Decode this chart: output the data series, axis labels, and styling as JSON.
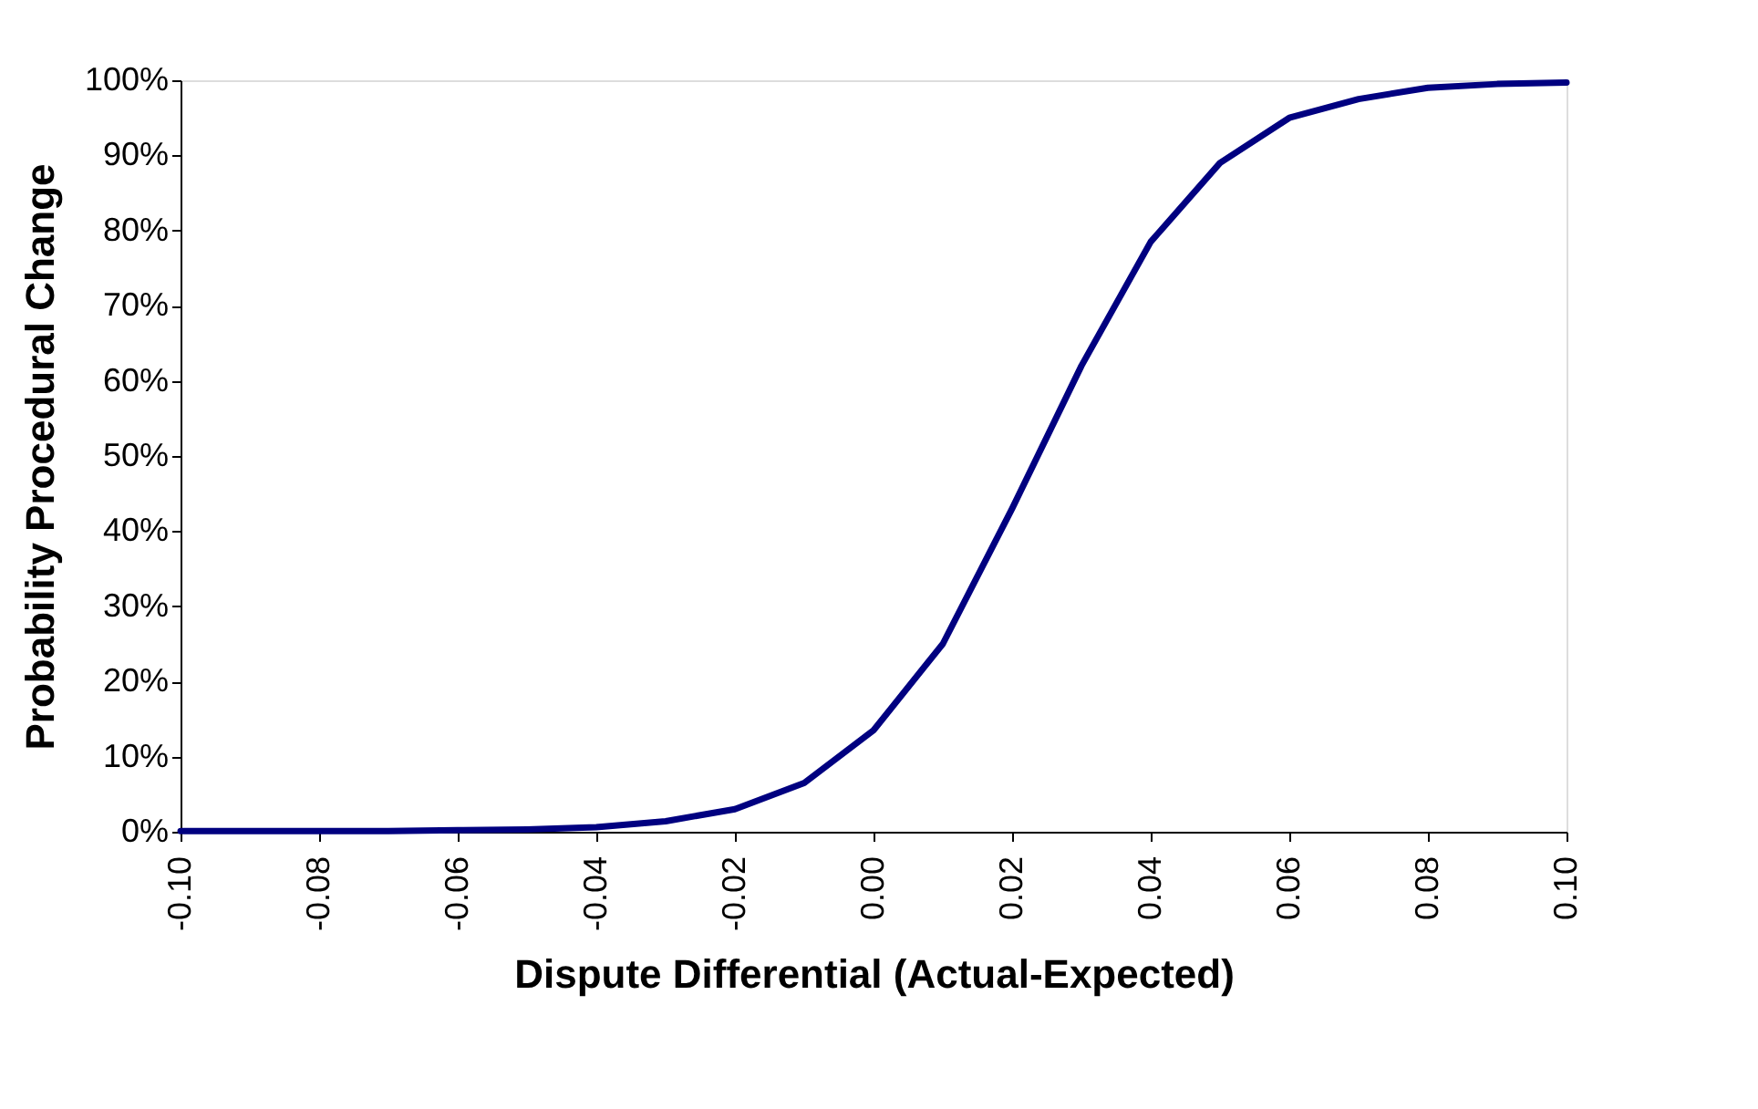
{
  "chart_data": {
    "type": "line",
    "xlabel": "Dispute Differential (Actual-Expected)",
    "ylabel": "Probability Procedural Change",
    "x": [
      -0.1,
      -0.09,
      -0.08,
      -0.07,
      -0.06,
      -0.05,
      -0.04,
      -0.03,
      -0.02,
      -0.01,
      0.0,
      0.01,
      0.02,
      0.03,
      0.04,
      0.05,
      0.06,
      0.07,
      0.08,
      0.09,
      0.1
    ],
    "series": [
      {
        "color": "#000080",
        "values": [
          0.1,
          0.1,
          0.1,
          0.1,
          0.2,
          0.3,
          0.6,
          1.4,
          3,
          6.5,
          13.5,
          25,
          43,
          62,
          78.5,
          89,
          95,
          97.5,
          99,
          99.5,
          99.7
        ]
      }
    ],
    "xlim": [
      -0.1,
      0.1
    ],
    "xticks": [
      {
        "value": -0.1,
        "label": "-0.10"
      },
      {
        "value": -0.08,
        "label": "-0.08"
      },
      {
        "value": -0.06,
        "label": "-0.06"
      },
      {
        "value": -0.04,
        "label": "-0.04"
      },
      {
        "value": -0.02,
        "label": "-0.02"
      },
      {
        "value": 0.0,
        "label": "0.00"
      },
      {
        "value": 0.02,
        "label": "0.02"
      },
      {
        "value": 0.04,
        "label": "0.04"
      },
      {
        "value": 0.06,
        "label": "0.06"
      },
      {
        "value": 0.08,
        "label": "0.08"
      },
      {
        "value": 0.1,
        "label": "0.10"
      }
    ],
    "ylim": [
      0,
      100
    ],
    "yticks": [
      {
        "value": 0,
        "label": "0%"
      },
      {
        "value": 10,
        "label": "10%"
      },
      {
        "value": 20,
        "label": "20%"
      },
      {
        "value": 30,
        "label": "30%"
      },
      {
        "value": 40,
        "label": "40%"
      },
      {
        "value": 50,
        "label": "50%"
      },
      {
        "value": 60,
        "label": "60%"
      },
      {
        "value": 70,
        "label": "70%"
      },
      {
        "value": 80,
        "label": "80%"
      },
      {
        "value": 90,
        "label": "90%"
      },
      {
        "value": 100,
        "label": "100%"
      }
    ],
    "grid": false,
    "legend": false,
    "marker": "none",
    "line_style": "solid"
  }
}
